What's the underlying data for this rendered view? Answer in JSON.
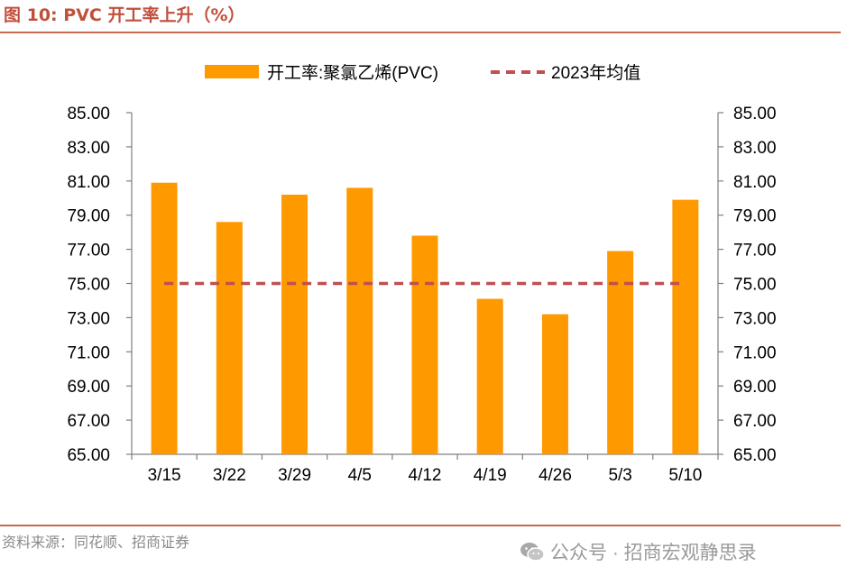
{
  "figure": {
    "title": "图 10:  PVC 开工率上升（%）",
    "source": "资料来源：同花顺、招商证券",
    "watermark": "公众号 · 招商宏观静思录",
    "watermark_icon": "wechat-icon"
  },
  "colors": {
    "bar": "#ff9900",
    "avg_line": "#c0504d",
    "rule": "#c86a4e",
    "axis": "#7f7f7f"
  },
  "chart_data": {
    "type": "bar",
    "categories": [
      "3/15",
      "3/22",
      "3/29",
      "4/5",
      "4/12",
      "4/19",
      "4/26",
      "5/3",
      "5/10"
    ],
    "series": [
      {
        "name": "开工率:聚氯乙烯(PVC)",
        "type": "bar",
        "values": [
          80.9,
          78.6,
          80.2,
          80.6,
          77.8,
          74.1,
          73.2,
          76.9,
          79.9
        ]
      },
      {
        "name": "2023年均值",
        "type": "line-dashed",
        "values": [
          75.0,
          75.0,
          75.0,
          75.0,
          75.0,
          75.0,
          75.0,
          75.0,
          75.0
        ]
      }
    ],
    "ylim": [
      65,
      85
    ],
    "yticks": [
      "65.00",
      "67.00",
      "69.00",
      "71.00",
      "73.00",
      "75.00",
      "77.00",
      "79.00",
      "81.00",
      "83.00",
      "85.00"
    ],
    "y_right_ticks": [
      "65.00",
      "67.00",
      "69.00",
      "71.00",
      "73.00",
      "75.00",
      "77.00",
      "79.00",
      "81.00",
      "83.00",
      "85.00"
    ],
    "legend_position": "top-center",
    "grid": false
  }
}
